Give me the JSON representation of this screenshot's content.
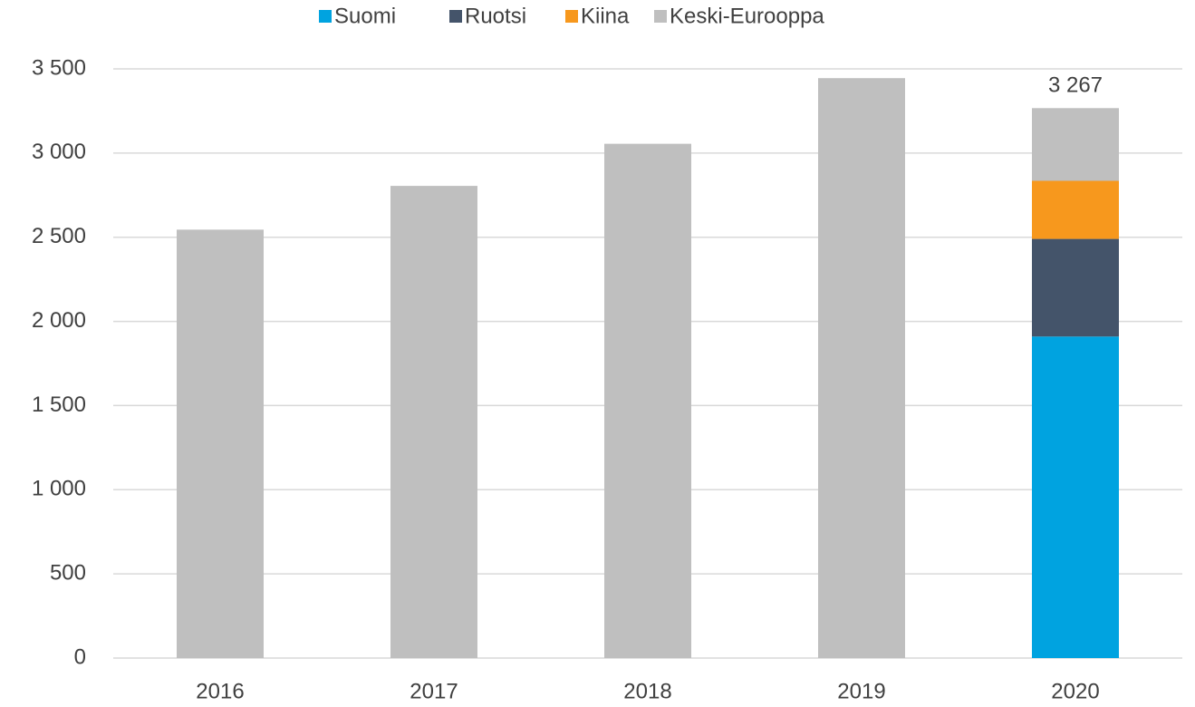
{
  "chart_data": {
    "type": "stacked_bar",
    "categories": [
      "2016",
      "2017",
      "2018",
      "2019",
      "2020"
    ],
    "series": [
      {
        "name": "Suomi",
        "color": "#00a3e0",
        "values": [
          null,
          null,
          null,
          null,
          1910
        ]
      },
      {
        "name": "Ruotsi",
        "color": "#44546a",
        "values": [
          null,
          null,
          null,
          null,
          580
        ]
      },
      {
        "name": "Kiina",
        "color": "#f7981d",
        "values": [
          null,
          null,
          null,
          null,
          345
        ]
      },
      {
        "name": "Keski-Eurooppa",
        "color": "#bfbfbf",
        "values": [
          2545,
          2805,
          3055,
          3445,
          432
        ]
      }
    ],
    "ylim": [
      0,
      3500
    ],
    "yticks": [
      0,
      500,
      {
        "value": 1000,
        "label": "1 000"
      },
      {
        "value": 1500,
        "label": "1 500"
      },
      {
        "value": 2000,
        "label": "2 000"
      },
      {
        "value": 2500,
        "label": "2 500"
      },
      {
        "value": 3000,
        "label": "3 000"
      },
      {
        "value": 3500,
        "label": "3 500"
      }
    ],
    "grid": true,
    "legend": "top",
    "annotations": [
      {
        "text": "3 267",
        "value": 3267,
        "category": "2020"
      }
    ]
  }
}
